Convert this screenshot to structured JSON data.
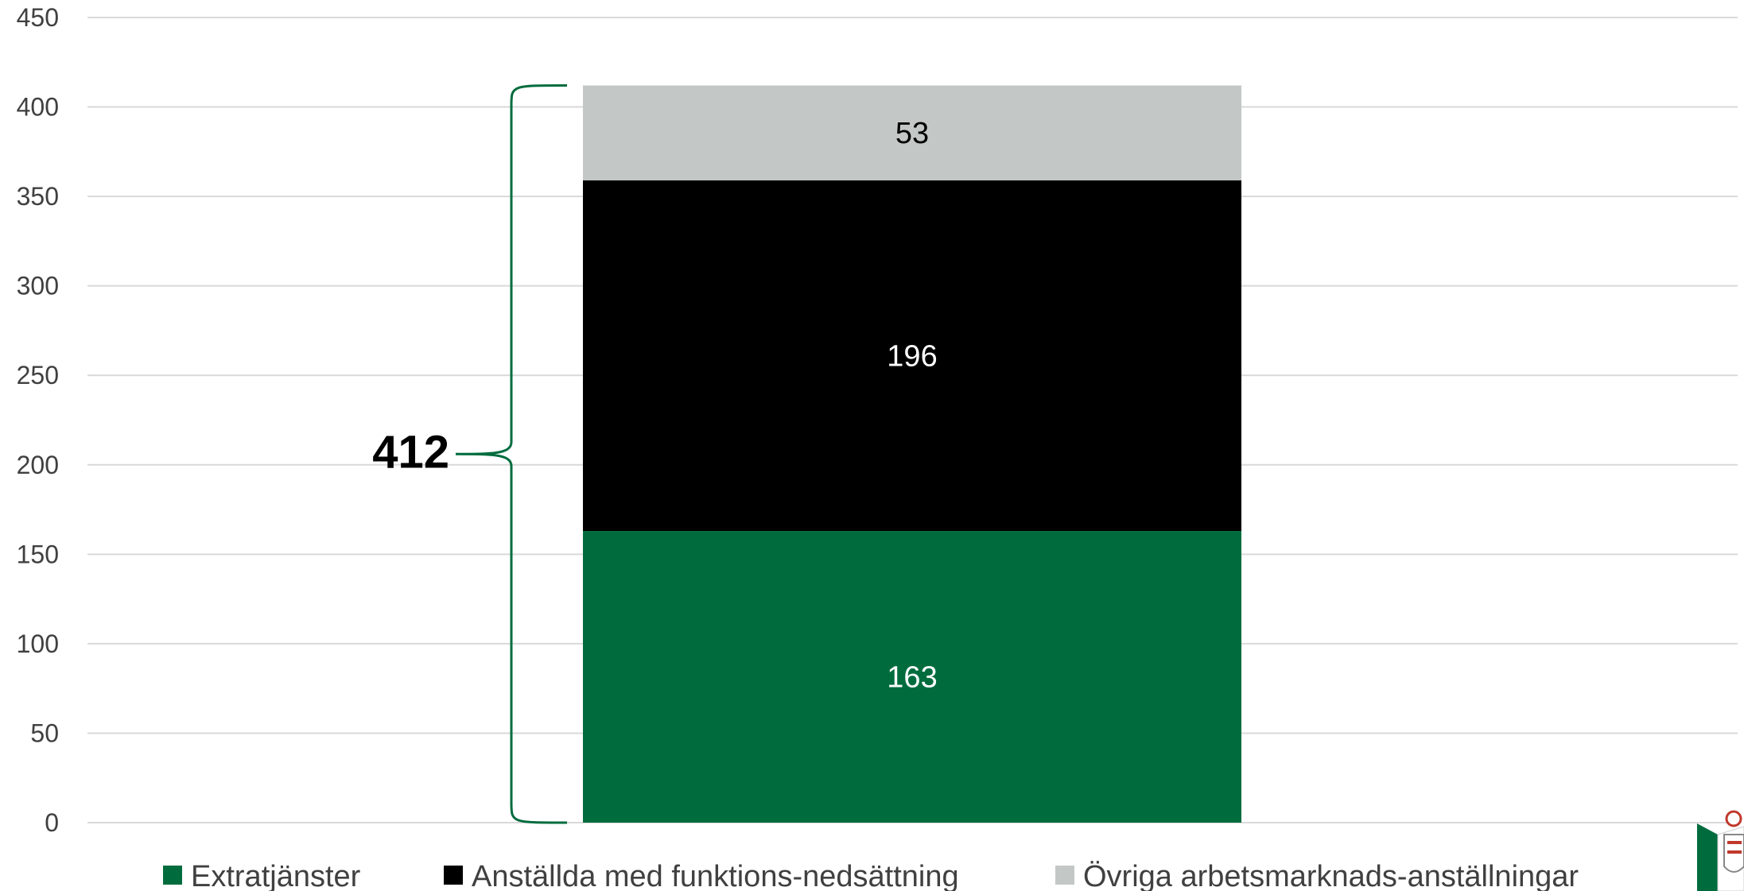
{
  "chart_data": {
    "type": "bar",
    "stacked": true,
    "categories": [
      ""
    ],
    "series": [
      {
        "name": "Extratjänster",
        "values": [
          163
        ],
        "color": "#006C3E",
        "label_color": "#ffffff"
      },
      {
        "name": "Anställda med funktions-nedsättning",
        "values": [
          196
        ],
        "color": "#000000",
        "label_color": "#ffffff"
      },
      {
        "name": "Övriga arbetsmarknads-anställningar",
        "values": [
          53
        ],
        "color": "#C3C8C6",
        "label_color": "#000000"
      }
    ],
    "total": "412",
    "ylim": [
      0,
      450
    ],
    "yticks": [
      0,
      50,
      100,
      150,
      200,
      250,
      300,
      350,
      400,
      450
    ],
    "grid": true,
    "legend": "bottom",
    "bracket_color": "#006C3E"
  },
  "logo": {
    "icon": "municipal-coat-of-arms-icon"
  }
}
